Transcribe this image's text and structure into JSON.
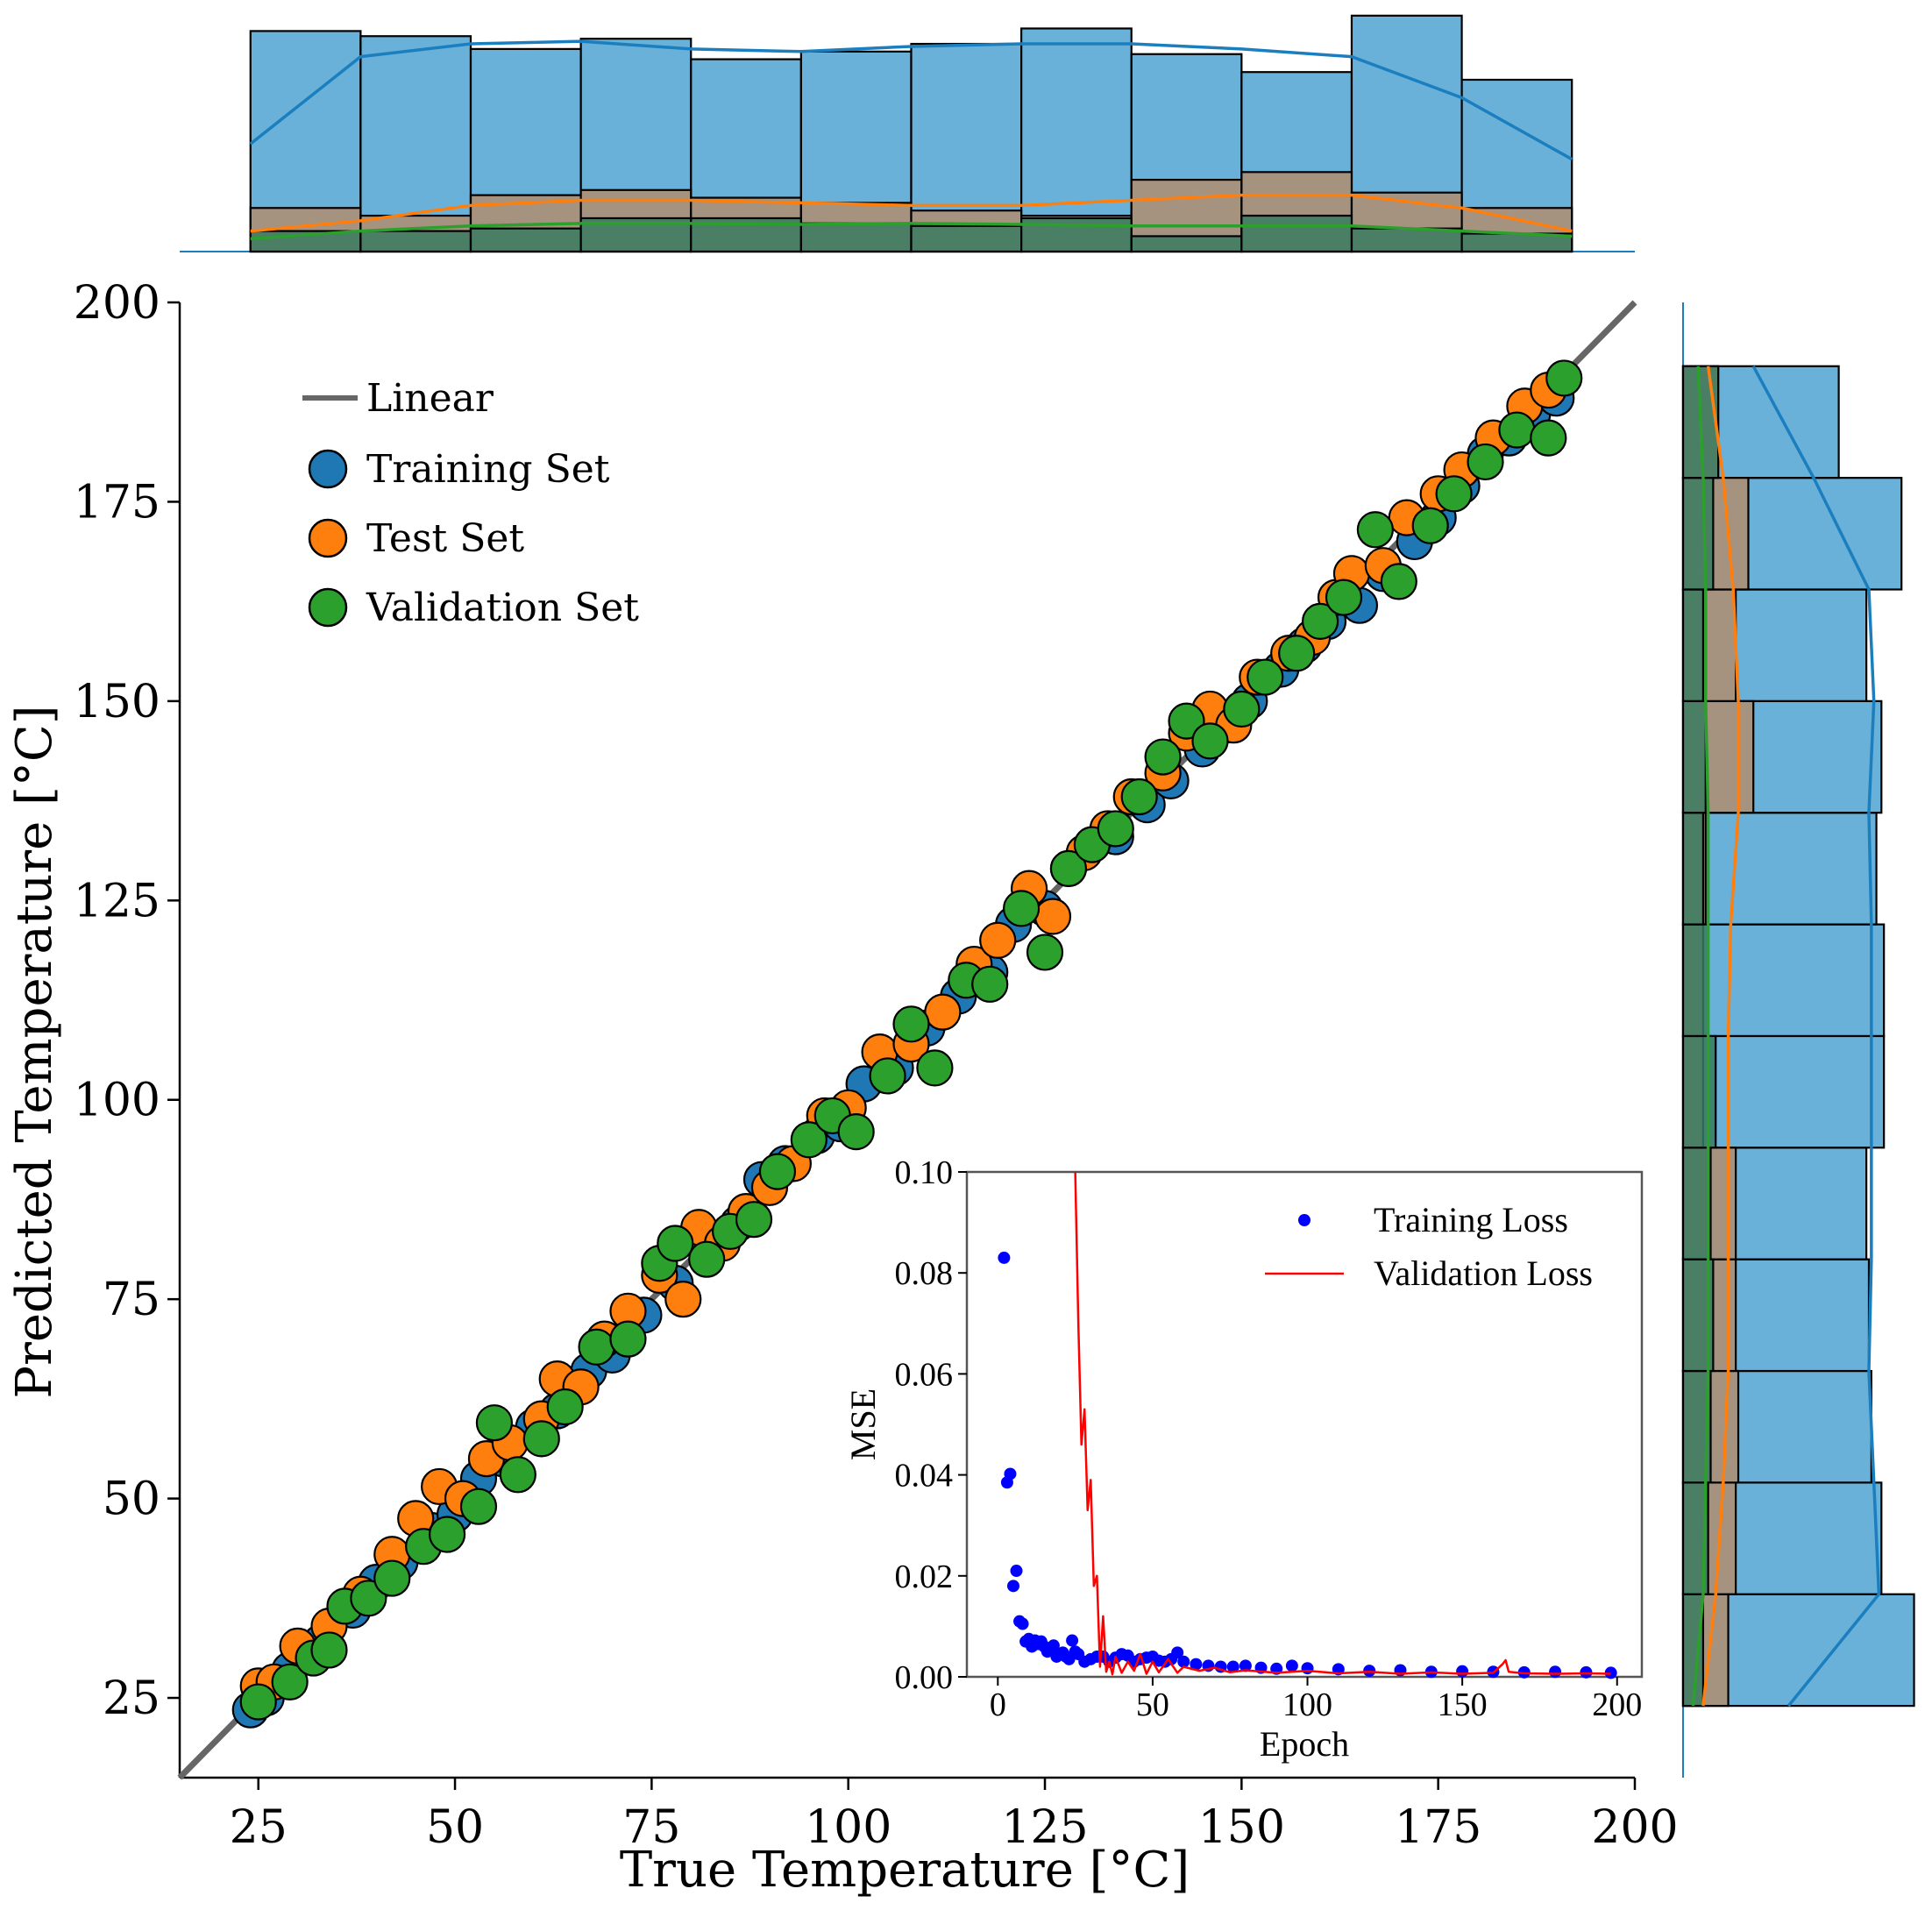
{
  "chart_data": [
    {
      "id": "main",
      "type": "scatter",
      "title": "",
      "xlabel": "True Temperature [°C]",
      "ylabel": "Predicted Temperature [°C]",
      "xlim": [
        15,
        200
      ],
      "ylim": [
        15,
        200
      ],
      "xticks": [
        25,
        50,
        75,
        100,
        125,
        150,
        175,
        200
      ],
      "yticks": [
        25,
        50,
        75,
        100,
        125,
        150,
        175,
        200
      ],
      "xtick_labels": [
        "25",
        "50",
        "75",
        "100",
        "125",
        "150",
        "175",
        "200"
      ],
      "ytick_labels": [
        "25",
        "50",
        "75",
        "100",
        "125",
        "150",
        "175",
        "200"
      ],
      "legend_position": "top-left",
      "reference_line": {
        "name": "Linear",
        "x": [
          15,
          200
        ],
        "y": [
          15,
          200
        ],
        "color": "#666666"
      },
      "series": [
        {
          "name": "Training Set",
          "color": "#1f77b4",
          "x": [
            24,
            26,
            29,
            33,
            37,
            40,
            43,
            47,
            50,
            53,
            56,
            60,
            63,
            67,
            70,
            74,
            78,
            82,
            86,
            89,
            92,
            96,
            99,
            102,
            106,
            110,
            114,
            118,
            121,
            125,
            128,
            131,
            134,
            138,
            141,
            145,
            148,
            151,
            155,
            158,
            161,
            165,
            168,
            172,
            175,
            178,
            181,
            184,
            187,
            190
          ],
          "y": [
            23.5,
            25,
            28.5,
            32,
            36,
            39.5,
            42,
            46,
            48,
            52.5,
            55,
            59,
            61,
            66,
            68,
            73,
            77,
            81,
            84.5,
            90,
            92,
            95.5,
            97,
            102,
            104,
            109,
            113,
            116,
            122,
            124,
            129,
            132,
            133,
            137,
            140,
            144,
            147,
            150,
            154,
            157,
            160,
            162,
            166,
            170,
            173,
            177,
            181,
            183,
            186,
            188
          ]
        },
        {
          "name": "Test Set",
          "color": "#ff7f0e",
          "x": [
            25,
            27,
            30,
            34,
            38,
            42,
            45,
            48,
            51,
            54,
            57,
            61,
            63,
            66,
            69,
            72,
            76,
            79,
            81,
            84,
            87,
            90,
            93,
            97,
            100,
            104,
            108,
            112,
            116,
            119,
            123,
            126,
            130,
            133,
            136,
            140,
            143,
            146,
            149,
            152,
            156,
            159,
            162,
            164,
            168,
            171,
            175,
            178,
            182,
            186,
            189
          ],
          "y": [
            26.5,
            27,
            31.5,
            34,
            38,
            43,
            47.5,
            51.5,
            50,
            55,
            57,
            60,
            65,
            64,
            70,
            73.5,
            78,
            75,
            84,
            82,
            86,
            89,
            92,
            98,
            99,
            106,
            107,
            111,
            117,
            120,
            126.5,
            123,
            131,
            134,
            138,
            141,
            146,
            149,
            147,
            153,
            156,
            158,
            163,
            166,
            167,
            173,
            176,
            179,
            183,
            187,
            189
          ]
        },
        {
          "name": "Validation Set",
          "color": "#2ca02c",
          "x": [
            25,
            29,
            32,
            34,
            36,
            39,
            42,
            46,
            49,
            53,
            55,
            58,
            61,
            64,
            68,
            72,
            76,
            78,
            82,
            85,
            88,
            91,
            95,
            98,
            101,
            105,
            108,
            111,
            115,
            118,
            122,
            125,
            128,
            131,
            134,
            137,
            140,
            143,
            146,
            150,
            153,
            157,
            160,
            163,
            167,
            170,
            174,
            177,
            181,
            185,
            189,
            191
          ],
          "y": [
            24.5,
            27,
            30,
            31,
            36.5,
            37.5,
            40,
            44,
            45.5,
            49,
            59.5,
            53,
            57.5,
            61.5,
            69,
            70,
            79.5,
            82,
            80,
            83.5,
            85,
            91,
            95,
            98,
            96,
            103,
            109.5,
            104,
            115,
            114.5,
            124,
            118.5,
            129,
            132,
            134,
            138,
            143,
            147.5,
            145,
            149,
            153,
            156,
            160,
            163,
            171.5,
            165,
            172,
            176,
            180,
            184,
            183,
            190.5
          ]
        }
      ]
    },
    {
      "id": "top-marginal",
      "type": "histogram",
      "axis": "x",
      "bin_edges": [
        24,
        38,
        52,
        66,
        80,
        94,
        108,
        122,
        136,
        150,
        164,
        178,
        192
      ],
      "series": [
        {
          "name": "Training Set",
          "color": "#4fa3d1",
          "counts": [
            43,
            42,
            39.5,
            41.5,
            37.5,
            39,
            40.5,
            43.5,
            38.5,
            35,
            46,
            33.5
          ]
        },
        {
          "name": "Test Set",
          "color": "#b08d70",
          "counts": [
            8.5,
            7,
            11,
            12,
            10.5,
            9.5,
            8,
            7,
            14,
            15.5,
            11.5,
            8.5
          ]
        },
        {
          "name": "Validation Set",
          "color": "#3a7a60",
          "counts": [
            4,
            4,
            4.5,
            6.5,
            6.5,
            5.5,
            5,
            6.5,
            3,
            7,
            4.5,
            3.5
          ]
        }
      ],
      "kde": [
        {
          "name": "Training Set",
          "color": "#1b7fbf",
          "points": [
            [
              24,
              21
            ],
            [
              38,
              38
            ],
            [
              52,
              40.5
            ],
            [
              66,
              41
            ],
            [
              80,
              39.5
            ],
            [
              94,
              39
            ],
            [
              108,
              40
            ],
            [
              122,
              40.5
            ],
            [
              136,
              40.5
            ],
            [
              150,
              39.5
            ],
            [
              164,
              38
            ],
            [
              178,
              30
            ],
            [
              192,
              18
            ]
          ]
        },
        {
          "name": "Test Set",
          "color": "#ff7f0e",
          "points": [
            [
              24,
              4
            ],
            [
              38,
              6
            ],
            [
              52,
              9
            ],
            [
              66,
              10
            ],
            [
              80,
              10
            ],
            [
              94,
              9.5
            ],
            [
              108,
              9
            ],
            [
              122,
              9
            ],
            [
              136,
              10
            ],
            [
              150,
              11
            ],
            [
              164,
              11
            ],
            [
              178,
              8.5
            ],
            [
              192,
              4
            ]
          ]
        },
        {
          "name": "Validation Set",
          "color": "#2ca02c",
          "points": [
            [
              24,
              2.5
            ],
            [
              38,
              4
            ],
            [
              52,
              5
            ],
            [
              66,
              5.5
            ],
            [
              80,
              5.5
            ],
            [
              94,
              5.3
            ],
            [
              108,
              5.5
            ],
            [
              122,
              5.3
            ],
            [
              136,
              5
            ],
            [
              150,
              5
            ],
            [
              164,
              5
            ],
            [
              178,
              4
            ],
            [
              192,
              3
            ]
          ]
        }
      ]
    },
    {
      "id": "right-marginal",
      "type": "histogram",
      "axis": "y",
      "bin_edges": [
        24,
        38,
        52,
        66,
        80,
        94,
        108,
        122,
        136,
        150,
        164,
        178,
        192
      ],
      "series": [
        {
          "name": "Training Set",
          "color": "#4fa3d1",
          "counts": [
            46,
            39.5,
            37.5,
            37,
            36.5,
            40,
            40,
            38.5,
            39.5,
            36.5,
            43.5,
            31
          ]
        },
        {
          "name": "Test Set",
          "color": "#b08d70",
          "counts": [
            9,
            10.5,
            11,
            10.5,
            10.5,
            4,
            4,
            4.5,
            14,
            10.5,
            13,
            7
          ]
        },
        {
          "name": "Validation Set",
          "color": "#3a7a60",
          "counts": [
            4,
            5,
            5.5,
            6,
            5.5,
            6.5,
            5,
            4,
            4.5,
            4,
            6,
            7
          ]
        }
      ],
      "kde": [
        {
          "name": "Training Set",
          "color": "#1b7fbf",
          "points": [
            [
              24,
              21
            ],
            [
              38,
              39
            ],
            [
              52,
              38
            ],
            [
              66,
              37
            ],
            [
              80,
              37.5
            ],
            [
              94,
              37.5
            ],
            [
              108,
              37.5
            ],
            [
              122,
              37.5
            ],
            [
              136,
              37
            ],
            [
              150,
              38
            ],
            [
              164,
              37
            ],
            [
              178,
              26
            ],
            [
              192,
              14
            ]
          ]
        },
        {
          "name": "Test Set",
          "color": "#ff7f0e",
          "points": [
            [
              24,
              4
            ],
            [
              38,
              6.5
            ],
            [
              52,
              8
            ],
            [
              66,
              9
            ],
            [
              80,
              9
            ],
            [
              94,
              9
            ],
            [
              108,
              9
            ],
            [
              122,
              9.5
            ],
            [
              136,
              11
            ],
            [
              150,
              11
            ],
            [
              164,
              10
            ],
            [
              178,
              8
            ],
            [
              192,
              5
            ]
          ]
        },
        {
          "name": "Validation Set",
          "color": "#2ca02c",
          "points": [
            [
              24,
              2
            ],
            [
              38,
              4
            ],
            [
              52,
              4.5
            ],
            [
              66,
              5
            ],
            [
              80,
              5
            ],
            [
              94,
              5
            ],
            [
              108,
              5
            ],
            [
              122,
              5
            ],
            [
              136,
              5
            ],
            [
              150,
              4.5
            ],
            [
              164,
              4.5
            ],
            [
              178,
              4
            ],
            [
              192,
              3
            ]
          ]
        }
      ]
    },
    {
      "id": "inset",
      "type": "line",
      "xlabel": "Epoch",
      "ylabel": "MSE",
      "xlim": [
        -10,
        208
      ],
      "ylim": [
        0,
        0.1
      ],
      "xticks": [
        0,
        50,
        100,
        150,
        200
      ],
      "yticks": [
        0,
        0.02,
        0.04,
        0.06,
        0.08,
        0.1
      ],
      "xtick_labels": [
        "0",
        "50",
        "100",
        "150",
        "200"
      ],
      "ytick_labels": [
        "0.00",
        "0.02",
        "0.04",
        "0.06",
        "0.08",
        "0.10"
      ],
      "legend_position": "top-right",
      "series": [
        {
          "name": "Training Loss",
          "style": "markers",
          "color": "#0000ff",
          "x": [
            2,
            3,
            4,
            5,
            6,
            7,
            8,
            9,
            10,
            11,
            12,
            13,
            14,
            15,
            16,
            17,
            18,
            19,
            20,
            21,
            22,
            23,
            24,
            25,
            26,
            28,
            30,
            32,
            34,
            36,
            38,
            40,
            42,
            44,
            46,
            48,
            50,
            52,
            54,
            56,
            58,
            60,
            64,
            68,
            72,
            76,
            80,
            85,
            90,
            95,
            100,
            110,
            120,
            130,
            140,
            150,
            160,
            170,
            180,
            190,
            198
          ],
          "y": [
            0.083,
            0.0385,
            0.0402,
            0.018,
            0.021,
            0.011,
            0.0105,
            0.007,
            0.0075,
            0.006,
            0.0072,
            0.0065,
            0.007,
            0.006,
            0.005,
            0.0055,
            0.0062,
            0.004,
            0.0045,
            0.0048,
            0.004,
            0.0035,
            0.0072,
            0.005,
            0.0045,
            0.003,
            0.0035,
            0.004,
            0.004,
            0.003,
            0.0038,
            0.0045,
            0.0042,
            0.003,
            0.0035,
            0.0038,
            0.004,
            0.0032,
            0.003,
            0.0035,
            0.0048,
            0.003,
            0.0025,
            0.0022,
            0.002,
            0.002,
            0.0022,
            0.0018,
            0.0016,
            0.0022,
            0.0017,
            0.0015,
            0.0012,
            0.0013,
            0.001,
            0.0011,
            0.001,
            0.0009,
            0.001,
            0.0009,
            0.0008
          ]
        },
        {
          "name": "Validation Loss",
          "style": "line",
          "color": "#ff0000",
          "x": [
            25,
            26,
            27,
            28,
            29,
            30,
            31,
            32,
            33,
            34,
            35,
            36,
            37,
            38,
            40,
            42,
            44,
            46,
            48,
            50,
            52,
            55,
            58,
            60,
            65,
            70,
            75,
            80,
            90,
            100,
            110,
            120,
            130,
            140,
            150,
            160,
            163,
            164,
            165,
            170,
            180,
            190,
            198
          ],
          "y": [
            0.1,
            0.07,
            0.046,
            0.053,
            0.033,
            0.039,
            0.018,
            0.02,
            0.002,
            0.012,
            0.001,
            0.003,
            0.0005,
            0.004,
            0.0008,
            0.003,
            0.0012,
            0.0045,
            0.0006,
            0.003,
            0.0009,
            0.0035,
            0.0008,
            0.002,
            0.0012,
            0.0018,
            0.0009,
            0.0013,
            0.0008,
            0.0012,
            0.0007,
            0.001,
            0.0006,
            0.0009,
            0.0006,
            0.0008,
            0.0025,
            0.0033,
            0.001,
            0.0007,
            0.0006,
            0.0007,
            0.0006
          ]
        }
      ]
    }
  ]
}
